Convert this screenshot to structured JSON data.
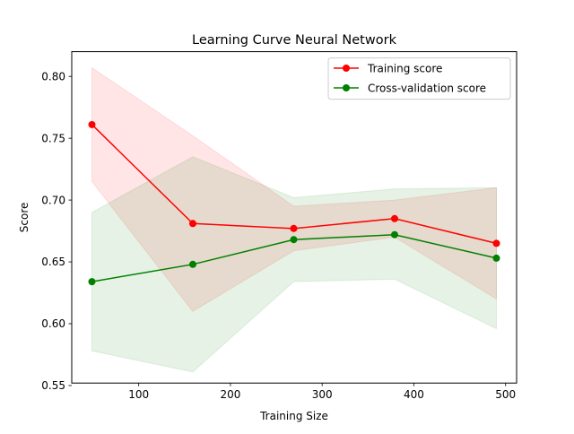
{
  "chart_data": {
    "type": "line",
    "title": "Learning Curve Neural Network",
    "xlabel": "Training Size",
    "ylabel": "Score",
    "xlim": [
      27,
      512
    ],
    "ylim": [
      0.552,
      0.82
    ],
    "x_ticks": [
      {
        "value": 100,
        "label": "100"
      },
      {
        "value": 200,
        "label": "200"
      },
      {
        "value": 300,
        "label": "300"
      },
      {
        "value": 400,
        "label": "400"
      },
      {
        "value": 500,
        "label": "500"
      }
    ],
    "y_ticks": [
      {
        "value": 0.55,
        "label": "0.55"
      },
      {
        "value": 0.6,
        "label": "0.60"
      },
      {
        "value": 0.65,
        "label": "0.65"
      },
      {
        "value": 0.7,
        "label": "0.70"
      },
      {
        "value": 0.75,
        "label": "0.75"
      },
      {
        "value": 0.8,
        "label": "0.80"
      }
    ],
    "x": [
      49,
      159,
      269,
      379,
      490
    ],
    "series": [
      {
        "name": "Training score",
        "color": "#ff0000",
        "values": [
          0.761,
          0.681,
          0.677,
          0.685,
          0.665
        ],
        "band_lower": [
          0.715,
          0.61,
          0.659,
          0.67,
          0.62
        ],
        "band_upper": [
          0.807,
          0.752,
          0.695,
          0.7,
          0.71
        ]
      },
      {
        "name": "Cross-validation score",
        "color": "#008000",
        "values": [
          0.634,
          0.648,
          0.668,
          0.672,
          0.653
        ],
        "band_lower": [
          0.578,
          0.561,
          0.634,
          0.636,
          0.596
        ],
        "band_upper": [
          0.69,
          0.735,
          0.702,
          0.709,
          0.71
        ]
      }
    ],
    "legend_position": "top-right",
    "grid": false
  }
}
